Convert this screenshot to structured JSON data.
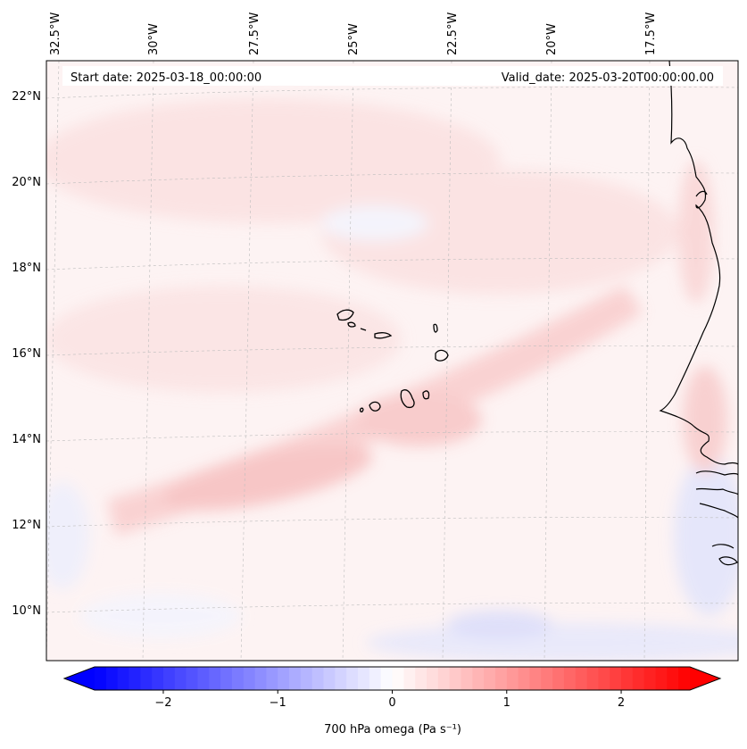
{
  "header": {
    "start_date": "Start date: 2025-03-18_00:00:00",
    "valid_date": "Valid_date: 2025-03-20T00:00:00.00"
  },
  "longitude_labels": [
    "32.5°W",
    "30°W",
    "27.5°W",
    "25°W",
    "22.5°W",
    "20°W",
    "17.5°W"
  ],
  "latitude_labels": [
    "22°N",
    "20°N",
    "18°N",
    "16°N",
    "14°N",
    "12°N",
    "10°N"
  ],
  "colorbar": {
    "label": "700 hPa omega (Pa s⁻¹)",
    "ticks": [
      "−2",
      "−1",
      "0",
      "1",
      "2"
    ],
    "tick_values": [
      -2,
      -1,
      0,
      1,
      2
    ],
    "range": [
      -2.6,
      2.6
    ],
    "colormap": "bwr",
    "colors": {
      "min": "#0000ff",
      "mid": "#ffffff",
      "max": "#ff0000"
    }
  },
  "map": {
    "field": "700 hPa omega",
    "extent_lon": [
      -32.7,
      -15.4
    ],
    "extent_lat": [
      8.9,
      22.8
    ],
    "gridlines": true,
    "coastline_color": "#000000"
  }
}
